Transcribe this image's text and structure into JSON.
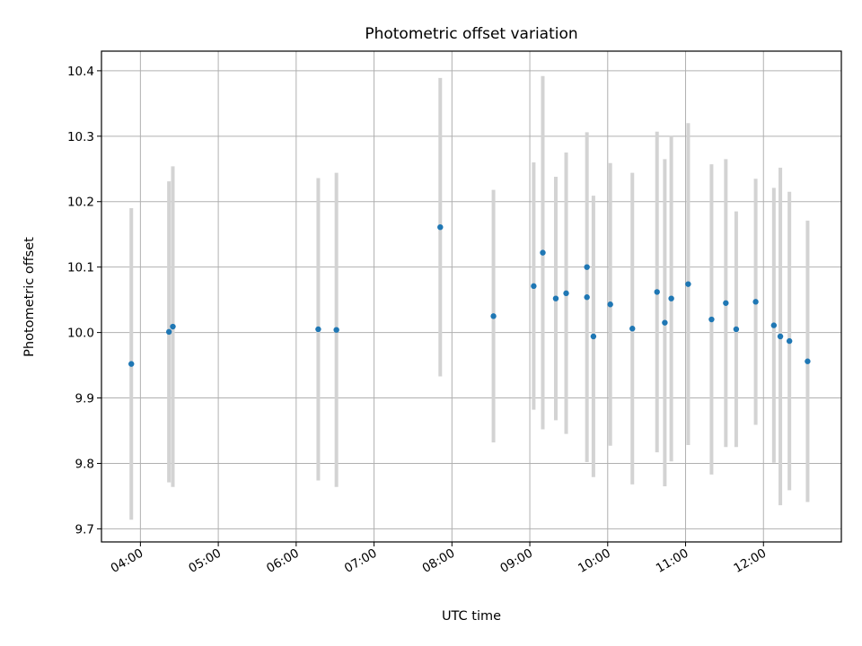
{
  "chart_data": {
    "type": "scatter",
    "title": "Photometric offset variation",
    "xlabel": "UTC time",
    "ylabel": "Photometric offset",
    "x_unit": "hours UTC",
    "xlim": [
      "03:30",
      "13:00"
    ],
    "ylim": [
      9.68,
      10.43
    ],
    "x_ticks": [
      "04:00",
      "05:00",
      "06:00",
      "07:00",
      "08:00",
      "09:00",
      "10:00",
      "11:00",
      "12:00"
    ],
    "y_ticks": [
      "9.7",
      "9.8",
      "9.9",
      "10.0",
      "10.1",
      "10.2",
      "10.3",
      "10.4"
    ],
    "grid": true,
    "point_color": "#1f77b4",
    "errorbar_color": "#d3d3d3",
    "points": [
      {
        "x": "03:53",
        "y": 9.952,
        "err": 0.238
      },
      {
        "x": "04:22",
        "y": 10.001,
        "err": 0.23
      },
      {
        "x": "04:25",
        "y": 10.009,
        "err": 0.245
      },
      {
        "x": "06:17",
        "y": 10.005,
        "err": 0.231
      },
      {
        "x": "06:31",
        "y": 10.004,
        "err": 0.24
      },
      {
        "x": "07:51",
        "y": 10.161,
        "err": 0.228
      },
      {
        "x": "08:32",
        "y": 10.025,
        "err": 0.193
      },
      {
        "x": "09:03",
        "y": 10.071,
        "err": 0.189
      },
      {
        "x": "09:10",
        "y": 10.122,
        "err": 0.27
      },
      {
        "x": "09:20",
        "y": 10.052,
        "err": 0.186
      },
      {
        "x": "09:28",
        "y": 10.06,
        "err": 0.215
      },
      {
        "x": "09:44",
        "y": 10.054,
        "err": 0.252
      },
      {
        "x": "09:44",
        "y": 10.1,
        "err": 0.0
      },
      {
        "x": "09:49",
        "y": 9.994,
        "err": 0.215
      },
      {
        "x": "10:02",
        "y": 10.043,
        "err": 0.216
      },
      {
        "x": "10:19",
        "y": 10.006,
        "err": 0.238
      },
      {
        "x": "10:38",
        "y": 10.062,
        "err": 0.245
      },
      {
        "x": "10:44",
        "y": 10.015,
        "err": 0.25
      },
      {
        "x": "10:49",
        "y": 10.052,
        "err": 0.249
      },
      {
        "x": "11:02",
        "y": 10.074,
        "err": 0.246
      },
      {
        "x": "11:20",
        "y": 10.02,
        "err": 0.237
      },
      {
        "x": "11:31",
        "y": 10.045,
        "err": 0.22
      },
      {
        "x": "11:39",
        "y": 10.005,
        "err": 0.18
      },
      {
        "x": "11:54",
        "y": 10.047,
        "err": 0.188
      },
      {
        "x": "12:08",
        "y": 10.011,
        "err": 0.21
      },
      {
        "x": "12:13",
        "y": 9.994,
        "err": 0.258
      },
      {
        "x": "12:20",
        "y": 9.987,
        "err": 0.228
      },
      {
        "x": "12:34",
        "y": 9.956,
        "err": 0.215
      }
    ]
  }
}
